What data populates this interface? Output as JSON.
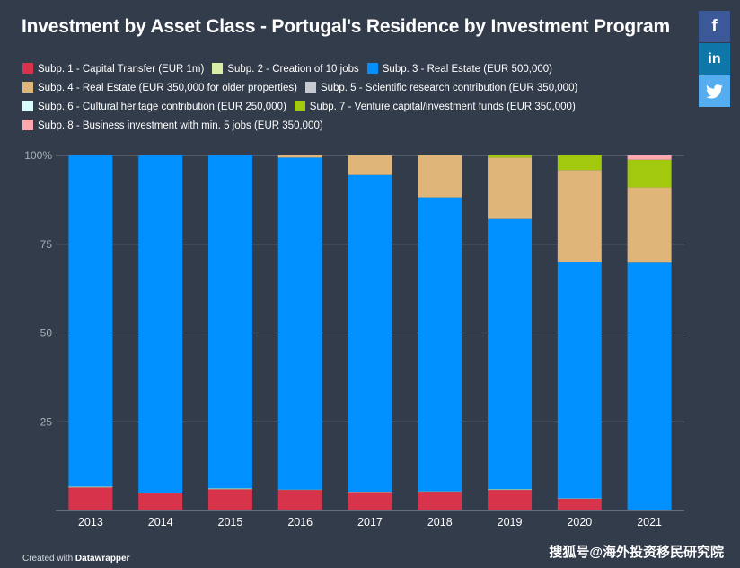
{
  "title": "Investment by Asset Class - Portugal's Residence by Investment Program",
  "legend": [
    {
      "label": "Subp. 1 - Capital Transfer (EUR 1m)",
      "color": "#d7334a"
    },
    {
      "label": "Subp. 2 - Creation of 10 jobs",
      "color": "#d9eca5"
    },
    {
      "label": "Subp. 3 - Real Estate (EUR 500,000)",
      "color": "#0090ff"
    },
    {
      "label": "Subp. 4 - Real Estate (EUR 350,000 for older properties)",
      "color": "#e0b57a"
    },
    {
      "label": "Subp. 5 - Scientific research contribution (EUR 350,000)",
      "color": "#c6cad0"
    },
    {
      "label": "Subp. 6 - Cultural heritage contribution (EUR 250,000)",
      "color": "#d9fbfd"
    },
    {
      "label": "Subp. 7 - Venture capital/investment funds (EUR 350,000)",
      "color": "#a3c90f"
    },
    {
      "label": "Subp. 8 - Business investment with min. 5 jobs (EUR 350,000)",
      "color": "#ffa8b0"
    }
  ],
  "share": {
    "facebook": "f",
    "linkedin": "in",
    "twitter": "twitter-bird-icon"
  },
  "credit": {
    "prefix": "Created with",
    "brand": "Datawrapper"
  },
  "watermark": "搜狐号@海外投资移民研究院",
  "chart_data": {
    "type": "bar",
    "stacked": true,
    "title": "Investment by Asset Class - Portugal's Residence by Investment Program",
    "categories": [
      "2013",
      "2014",
      "2015",
      "2016",
      "2017",
      "2018",
      "2019",
      "2020",
      "2021"
    ],
    "ylim": [
      0,
      100
    ],
    "yticks": [
      "25",
      "50",
      "75",
      "100%"
    ],
    "grid": true,
    "legend_position": "top",
    "series": [
      {
        "name": "Subp. 1 - Capital Transfer (EUR 1m)",
        "color": "#d7334a",
        "values": [
          6.5,
          4.8,
          6.0,
          5.8,
          5.2,
          5.3,
          5.8,
          3.3,
          0
        ]
      },
      {
        "name": "Subp. 2 - Creation of 10 jobs",
        "color": "#d9eca5",
        "values": [
          0.2,
          0.2,
          0.2,
          0.1,
          0.1,
          0.1,
          0.2,
          0.1,
          0
        ]
      },
      {
        "name": "Subp. 3 - Real Estate (EUR 500,000)",
        "color": "#0090ff",
        "values": [
          93.3,
          95.0,
          93.8,
          93.5,
          89.2,
          82.8,
          76.1,
          66.6,
          69.8
        ]
      },
      {
        "name": "Subp. 4 - Real Estate (EUR 350,000 for older properties)",
        "color": "#e0b57a",
        "values": [
          0,
          0,
          0,
          0.6,
          5.5,
          11.8,
          17.3,
          25.9,
          21.2
        ]
      },
      {
        "name": "Subp. 5 - Scientific research contribution (EUR 350,000)",
        "color": "#c6cad0",
        "values": [
          0,
          0,
          0,
          0,
          0,
          0,
          0,
          0,
          0
        ]
      },
      {
        "name": "Subp. 6 - Cultural heritage contribution (EUR 250,000)",
        "color": "#d9fbfd",
        "values": [
          0,
          0,
          0,
          0,
          0,
          0,
          0,
          0,
          0
        ]
      },
      {
        "name": "Subp. 7 - Venture capital/investment funds (EUR 350,000)",
        "color": "#a3c90f",
        "values": [
          0,
          0,
          0,
          0,
          0,
          0,
          0.6,
          4.1,
          7.8
        ]
      },
      {
        "name": "Subp. 8 - Business investment with min. 5 jobs (EUR 350,000)",
        "color": "#ffa8b0",
        "values": [
          0,
          0,
          0,
          0,
          0,
          0,
          0,
          0,
          1.2
        ]
      }
    ]
  }
}
